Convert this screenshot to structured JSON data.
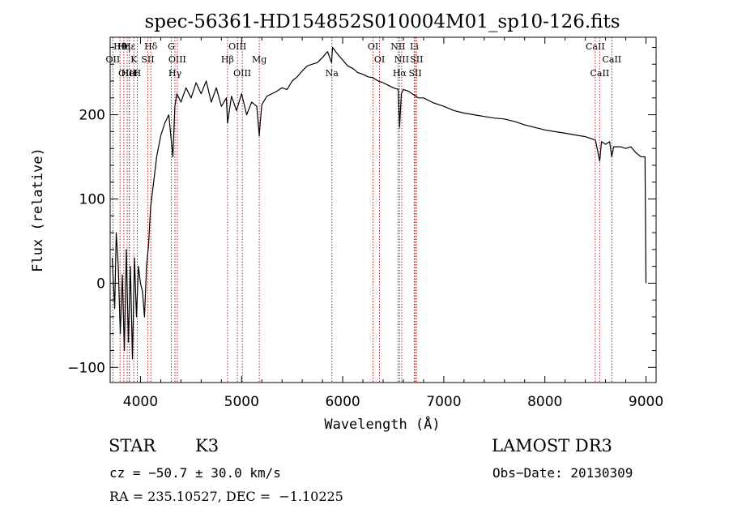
{
  "chart_data": {
    "type": "line",
    "title": "spec-56361-HD154852S010004M01_sp10-126.fits",
    "xlabel": "Wavelength (Å)",
    "ylabel": "Flux (relative)",
    "xlim": [
      3700,
      9100
    ],
    "ylim": [
      -118,
      292
    ],
    "xticks": [
      4000,
      5000,
      6000,
      7000,
      8000,
      9000
    ],
    "yticks": [
      -100,
      0,
      100,
      200
    ],
    "series": [
      {
        "name": "",
        "x": [
          3720,
          3745,
          3760,
          3780,
          3800,
          3820,
          3840,
          3860,
          3880,
          3900,
          3920,
          3940,
          3960,
          3980,
          4000,
          4020,
          4040,
          4060,
          4080,
          4100,
          4130,
          4160,
          4200,
          4240,
          4280,
          4320,
          4340,
          4360,
          4400,
          4450,
          4500,
          4550,
          4600,
          4650,
          4700,
          4750,
          4800,
          4850,
          4861,
          4900,
          4950,
          5000,
          5050,
          5100,
          5150,
          5175,
          5185,
          5200,
          5250,
          5300,
          5350,
          5400,
          5450,
          5500,
          5550,
          5600,
          5650,
          5700,
          5750,
          5800,
          5850,
          5890,
          5900,
          5950,
          6000,
          6050,
          6100,
          6150,
          6200,
          6250,
          6300,
          6350,
          6400,
          6450,
          6500,
          6550,
          6563,
          6580,
          6600,
          6650,
          6700,
          6750,
          6800,
          6900,
          7000,
          7100,
          7200,
          7300,
          7400,
          7500,
          7600,
          7700,
          7800,
          7900,
          8000,
          8100,
          8200,
          8300,
          8400,
          8500,
          8542,
          8560,
          8600,
          8640,
          8662,
          8680,
          8750,
          8800,
          8850,
          8900,
          8950,
          8990,
          9000
        ],
        "y": [
          30,
          -30,
          60,
          20,
          -60,
          10,
          -80,
          40,
          -70,
          20,
          -90,
          30,
          -40,
          20,
          0,
          -10,
          -40,
          20,
          45,
          90,
          120,
          150,
          175,
          190,
          200,
          150,
          210,
          225,
          215,
          232,
          220,
          238,
          225,
          240,
          215,
          232,
          210,
          220,
          190,
          222,
          205,
          225,
          200,
          215,
          210,
          175,
          192,
          212,
          222,
          225,
          228,
          232,
          230,
          240,
          245,
          252,
          258,
          260,
          262,
          268,
          275,
          262,
          280,
          272,
          265,
          258,
          255,
          250,
          248,
          245,
          244,
          240,
          238,
          235,
          232,
          230,
          185,
          225,
          230,
          228,
          224,
          220,
          220,
          214,
          210,
          205,
          202,
          200,
          198,
          196,
          195,
          192,
          188,
          185,
          182,
          180,
          178,
          176,
          174,
          170,
          145,
          168,
          165,
          168,
          150,
          162,
          162,
          160,
          162,
          155,
          150,
          150,
          0
        ]
      }
    ],
    "line_ids": [
      {
        "label": "Hθ",
        "x": 3798
      },
      {
        "label": "OII",
        "x": 3727
      },
      {
        "label": "OIII",
        "x": 3869
      },
      {
        "label": "Hε",
        "x": 3889
      },
      {
        "label": "K",
        "x": 3934
      },
      {
        "label": "HeI",
        "x": 3890
      },
      {
        "label": "Hη",
        "x": 3835
      },
      {
        "label": "SII",
        "x": 4072
      },
      {
        "label": "H",
        "x": 3968
      },
      {
        "label": "Hδ",
        "x": 4102
      },
      {
        "label": "OIII",
        "x": 4364
      },
      {
        "label": "Hγ",
        "x": 4341
      },
      {
        "label": "G",
        "x": 4305
      },
      {
        "label": "Hβ",
        "x": 4861
      },
      {
        "label": "OIII",
        "x": 5007
      },
      {
        "label": "OIII",
        "x": 4959
      },
      {
        "label": "Mg",
        "x": 5175
      },
      {
        "label": "Na",
        "x": 5893
      },
      {
        "label": "OI",
        "x": 6300
      },
      {
        "label": "OI",
        "x": 6364
      },
      {
        "label": "Hα",
        "x": 6563
      },
      {
        "label": "NII",
        "x": 6548
      },
      {
        "label": "NII",
        "x": 6584
      },
      {
        "label": "SII",
        "x": 6717
      },
      {
        "label": "Li",
        "x": 6708
      },
      {
        "label": "SII",
        "x": 6731
      },
      {
        "label": "CaII",
        "x": 8542
      },
      {
        "label": "CaII",
        "x": 8498
      },
      {
        "label": "CaII",
        "x": 8662
      }
    ]
  },
  "info": {
    "class": "STAR",
    "subclass": "K3",
    "survey": "LAMOST DR3",
    "cz": "cz = −50.7 ± 30.0 km/s",
    "obs_date": "Obs−Date: 20130309",
    "coords": "RA = 235.10527, DEC =  −1.10225"
  },
  "colors": {
    "line_marker": "#b22222",
    "spectrum": "#000000",
    "axes": "#000000"
  }
}
